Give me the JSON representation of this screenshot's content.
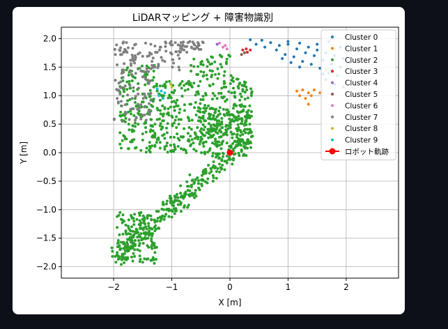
{
  "chart_data": {
    "type": "scatter",
    "title": "LiDARマッピング + 障害物識別",
    "xlabel": "X [m]",
    "ylabel": "Y [m]",
    "xlim": [
      -2.9,
      2.9
    ],
    "ylim": [
      -2.2,
      2.2
    ],
    "xticks": [
      -2,
      -1,
      0,
      1,
      2
    ],
    "xtick_labels": [
      "−2",
      "−1",
      "0",
      "1",
      "2"
    ],
    "yticks": [
      2.0,
      1.5,
      1.0,
      0.5,
      0.0,
      -0.5,
      -1.0,
      -1.5,
      -2.0
    ],
    "ytick_labels": [
      "2.0",
      "1.5",
      "1.0",
      "0.5",
      "0.0",
      "−0.5",
      "−1.0",
      "−1.5",
      "−2.0"
    ],
    "grid": true,
    "legend_position": "top-right",
    "series": [
      {
        "name": "Cluster 0",
        "color": "#1f77b4",
        "points": [
          [
            0.35,
            1.98
          ],
          [
            0.55,
            1.97
          ],
          [
            0.7,
            1.93
          ],
          [
            0.85,
            1.88
          ],
          [
            1.0,
            1.9
          ],
          [
            1.15,
            1.82
          ],
          [
            1.3,
            1.75
          ],
          [
            1.45,
            1.7
          ],
          [
            1.6,
            1.62
          ],
          [
            1.75,
            1.55
          ],
          [
            1.9,
            1.5
          ],
          [
            0.45,
            1.9
          ],
          [
            0.6,
            1.85
          ],
          [
            0.8,
            1.8
          ],
          [
            0.95,
            1.72
          ],
          [
            1.1,
            1.68
          ],
          [
            1.25,
            1.6
          ],
          [
            1.4,
            1.55
          ],
          [
            1.55,
            1.48
          ],
          [
            1.7,
            1.4
          ],
          [
            1.85,
            1.35
          ],
          [
            1.0,
            1.95
          ],
          [
            1.2,
            1.92
          ],
          [
            1.35,
            1.85
          ],
          [
            1.5,
            1.8
          ],
          [
            1.65,
            1.75
          ],
          [
            1.8,
            1.7
          ],
          [
            1.95,
            1.65
          ],
          [
            2.05,
            1.58
          ],
          [
            1.65,
            1.28
          ],
          [
            1.8,
            1.2
          ],
          [
            1.95,
            1.15
          ],
          [
            1.6,
            1.38
          ],
          [
            1.75,
            1.45
          ],
          [
            0.9,
            1.65
          ],
          [
            1.05,
            1.58
          ],
          [
            1.2,
            1.5
          ],
          [
            1.5,
            1.9
          ],
          [
            1.7,
            1.95
          ],
          [
            1.9,
            1.85
          ]
        ]
      },
      {
        "name": "Cluster 1",
        "color": "#ff7f0e",
        "points": [
          [
            1.15,
            1.08
          ],
          [
            1.25,
            1.1
          ],
          [
            1.35,
            1.05
          ],
          [
            1.45,
            1.1
          ],
          [
            1.3,
            0.95
          ],
          [
            1.4,
            1.0
          ],
          [
            1.2,
            1.0
          ],
          [
            1.55,
            1.05
          ],
          [
            1.35,
            0.85
          ],
          [
            1.65,
            1.45
          ]
        ]
      },
      {
        "name": "Cluster 2",
        "color": "#2ca02c",
        "points": []
      },
      {
        "name": "Cluster 3",
        "color": "#d62728",
        "points": [
          [
            0.22,
            1.8
          ],
          [
            0.28,
            1.82
          ],
          [
            0.3,
            1.76
          ],
          [
            0.35,
            1.8
          ]
        ]
      },
      {
        "name": "Cluster 4",
        "color": "#9467bd",
        "points": [
          [
            -0.22,
            1.9
          ]
        ]
      },
      {
        "name": "Cluster 5",
        "color": "#8c564b",
        "points": [
          [
            0.2,
            1.72
          ],
          [
            0.25,
            1.75
          ]
        ]
      },
      {
        "name": "Cluster 6",
        "color": "#e377c2",
        "points": [
          [
            -0.18,
            1.92
          ],
          [
            -0.12,
            1.85
          ],
          [
            -0.05,
            1.82
          ],
          [
            -0.08,
            1.88
          ]
        ]
      },
      {
        "name": "Cluster 7",
        "color": "#7f7f7f",
        "points": []
      },
      {
        "name": "Cluster 8",
        "color": "#bcbd22",
        "points": [
          [
            -1.02,
            1.2
          ],
          [
            -1.0,
            1.15
          ]
        ]
      },
      {
        "name": "Cluster 9",
        "color": "#17becf",
        "points": [
          [
            -1.25,
            1.12
          ],
          [
            -1.18,
            1.08
          ],
          [
            -1.12,
            1.05
          ],
          [
            -1.15,
            0.95
          ],
          [
            -1.22,
            1.0
          ]
        ]
      },
      {
        "name": "ロボット軌跡",
        "color": "#ff0000",
        "marker": "large-dot-with-line",
        "points": [
          [
            0.0,
            0.0
          ]
        ]
      }
    ]
  }
}
